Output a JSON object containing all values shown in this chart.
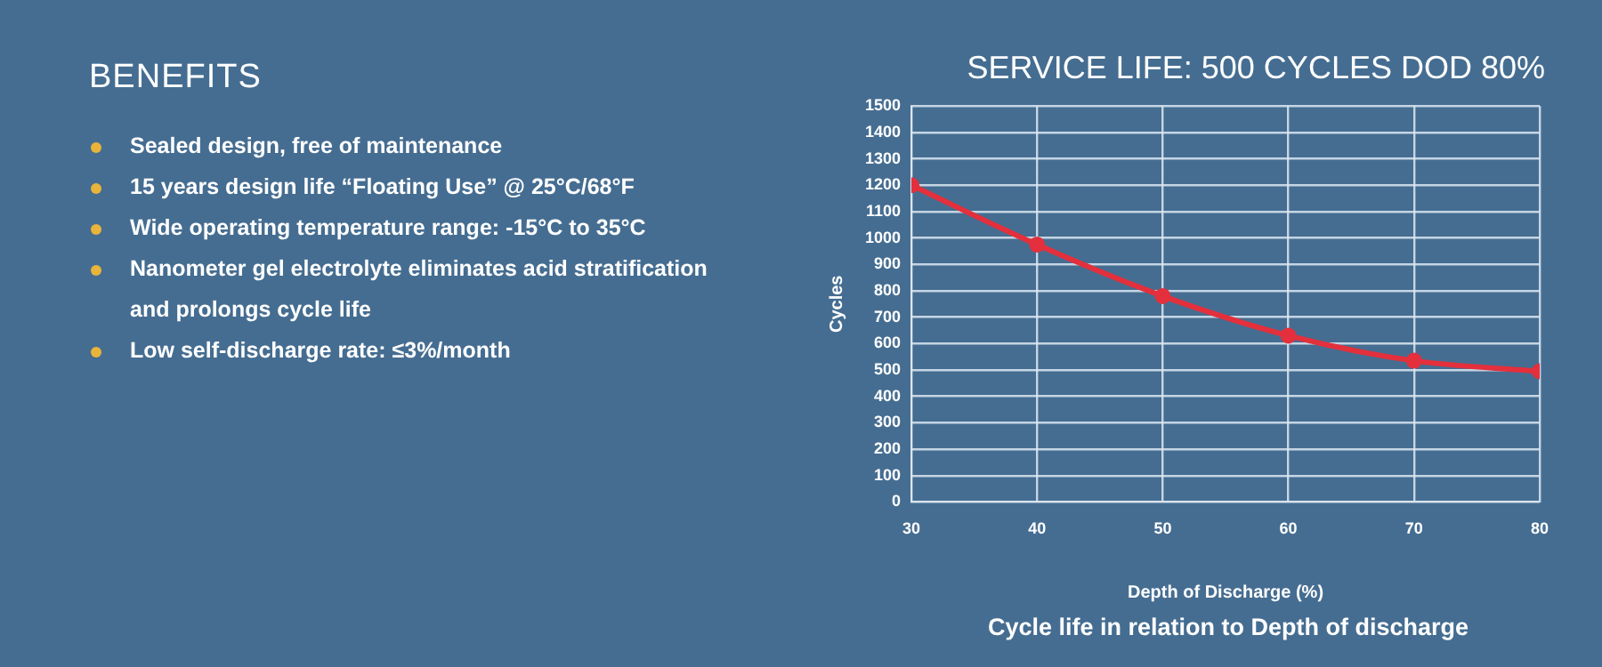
{
  "chart_data": [
    {
      "type": "other",
      "title": "BENEFITS",
      "annotations": [
        "Sealed design, free of maintenance",
        "15 years design life “Floating Use” @ 25°C/68°F",
        "Wide operating temperature range: -15°C to 35°C",
        "Nanometer gel electrolyte eliminates acid stratification and prolongs cycle life",
        "Low self-discharge  rate: ≤3%/month"
      ]
    },
    {
      "type": "line",
      "title": "SERVICE LIFE: 500 CYCLES DOD 80%",
      "xlabel": "Depth of Discharge (%)",
      "ylabel": "Cycles",
      "x": [
        30,
        40,
        50,
        60,
        70,
        80
      ],
      "series": [
        {
          "color": "#e3303c",
          "values": [
            1200,
            975,
            780,
            630,
            535,
            495
          ]
        }
      ],
      "xlim": [
        30,
        80
      ],
      "xticks": [
        30,
        40,
        50,
        60,
        70,
        80
      ],
      "ylim": [
        0,
        1500
      ],
      "yticks": [
        0,
        100,
        200,
        300,
        400,
        500,
        600,
        700,
        800,
        900,
        1000,
        1100,
        1200,
        1300,
        1400,
        1500
      ],
      "grid": true,
      "marker": "circle",
      "line_style": "solid",
      "annotations": [
        "Cycle life in relation to Depth of discharge"
      ]
    }
  ]
}
